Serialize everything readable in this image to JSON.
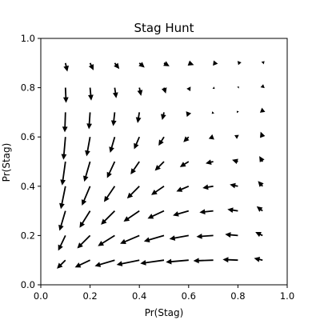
{
  "chart_data": {
    "type": "quiver",
    "title": "Stag Hunt",
    "xlabel": "Pr(Stag)",
    "ylabel": "Pr(Stag)",
    "xlim": [
      0.0,
      1.0
    ],
    "ylim": [
      0.0,
      1.0
    ],
    "xticks": [
      "0.0",
      "0.2",
      "0.4",
      "0.6",
      "0.8",
      "1.0"
    ],
    "yticks": [
      "0.0",
      "0.2",
      "0.4",
      "0.6",
      "0.8",
      "1.0"
    ],
    "grid": false,
    "arrow_color": "#000000",
    "grid_points": [
      0.1,
      0.2,
      0.3,
      0.4,
      0.5,
      0.6,
      0.7,
      0.8,
      0.9
    ]
  }
}
